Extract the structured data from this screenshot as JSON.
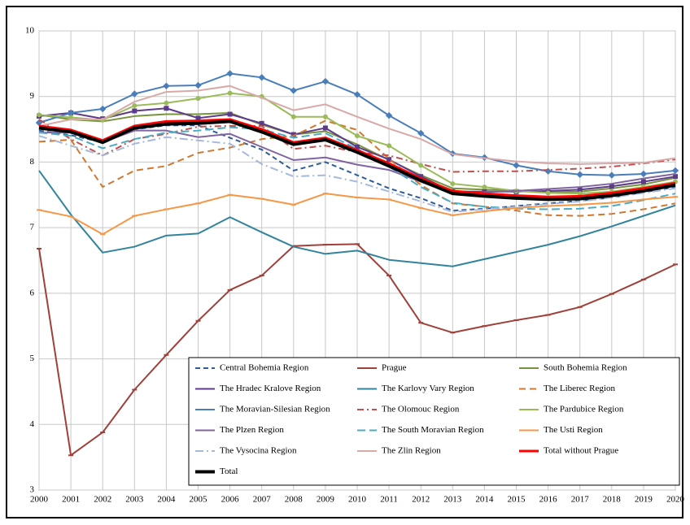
{
  "chart_data": {
    "type": "line",
    "x": [
      2000,
      2001,
      2002,
      2003,
      2004,
      2005,
      2006,
      2007,
      2008,
      2009,
      2010,
      2011,
      2012,
      2013,
      2014,
      2015,
      2016,
      2017,
      2018,
      2019,
      2020
    ],
    "xlim": [
      2000,
      2020
    ],
    "xticks": [
      2000,
      2001,
      2002,
      2003,
      2004,
      2005,
      2006,
      2007,
      2008,
      2009,
      2010,
      2011,
      2012,
      2013,
      2014,
      2015,
      2016,
      2017,
      2018,
      2019,
      2020
    ],
    "ylim": [
      3,
      10
    ],
    "yticks": [
      3,
      4,
      5,
      6,
      7,
      8,
      9,
      10
    ],
    "grid": true,
    "legend": "bottom-right",
    "series": [
      {
        "name": "Central Bohemia Region",
        "color": "#2e5c99",
        "dash": "6 4",
        "width": 2,
        "marker": null,
        "values": [
          8.48,
          8.41,
          8.3,
          8.5,
          8.56,
          8.56,
          8.37,
          8.19,
          7.87,
          8.0,
          7.8,
          7.6,
          7.45,
          7.26,
          7.29,
          7.33,
          7.37,
          7.41,
          7.46,
          7.54,
          7.62
        ]
      },
      {
        "name": "Prague",
        "color": "#a0403a",
        "dash": null,
        "width": 2,
        "marker": "dash",
        "values": [
          6.68,
          3.53,
          3.88,
          4.53,
          5.06,
          5.58,
          6.05,
          6.27,
          6.72,
          6.74,
          6.75,
          6.27,
          5.55,
          5.4,
          5.5,
          5.59,
          5.67,
          5.79,
          5.99,
          6.21,
          6.44
        ]
      },
      {
        "name": "South Bohemia Region",
        "color": "#77933c",
        "dash": null,
        "width": 2,
        "marker": null,
        "values": [
          8.72,
          8.65,
          8.62,
          8.7,
          8.73,
          8.73,
          8.75,
          8.57,
          8.42,
          8.47,
          8.27,
          8.03,
          7.8,
          7.6,
          7.58,
          7.57,
          7.54,
          7.55,
          7.6,
          7.66,
          7.76
        ]
      },
      {
        "name": "The Hradec Kralove Region",
        "color": "#5e3b8a",
        "dash": null,
        "width": 2,
        "marker": "square",
        "values": [
          8.7,
          8.75,
          8.66,
          8.78,
          8.82,
          8.67,
          8.73,
          8.59,
          8.42,
          8.52,
          8.23,
          8.04,
          7.78,
          7.55,
          7.55,
          7.55,
          7.56,
          7.58,
          7.63,
          7.7,
          7.78
        ]
      },
      {
        "name": "The Karlovy Vary Region",
        "color": "#31849b",
        "dash": null,
        "width": 2,
        "marker": null,
        "values": [
          7.87,
          7.2,
          6.62,
          6.71,
          6.88,
          6.91,
          7.16,
          6.93,
          6.71,
          6.6,
          6.65,
          6.51,
          6.46,
          6.41,
          6.52,
          6.63,
          6.74,
          6.87,
          7.02,
          7.18,
          7.34
        ]
      },
      {
        "name": "The Liberec Region",
        "color": "#d07830",
        "dash": "8 5",
        "width": 2,
        "marker": null,
        "values": [
          8.31,
          8.34,
          7.62,
          7.87,
          7.94,
          8.14,
          8.22,
          8.35,
          8.4,
          8.63,
          8.49,
          8.05,
          7.65,
          7.37,
          7.32,
          7.26,
          7.19,
          7.18,
          7.21,
          7.28,
          7.37
        ]
      },
      {
        "name": "The Moravian-Silesian Region",
        "color": "#4a7ebb",
        "dash": null,
        "width": 2,
        "marker": "diamond",
        "values": [
          8.6,
          8.75,
          8.81,
          9.04,
          9.16,
          9.17,
          9.35,
          9.29,
          9.09,
          9.23,
          9.03,
          8.71,
          8.44,
          8.13,
          8.07,
          7.95,
          7.86,
          7.81,
          7.8,
          7.82,
          7.87
        ]
      },
      {
        "name": "The Olomouc Region",
        "color": "#c0504d",
        "dash": "8 4 2 4",
        "width": 2,
        "marker": null,
        "values": [
          8.65,
          8.35,
          8.1,
          8.35,
          8.43,
          8.54,
          8.55,
          8.55,
          8.2,
          8.25,
          8.15,
          8.1,
          7.97,
          7.85,
          7.86,
          7.86,
          7.88,
          7.9,
          7.93,
          7.98,
          8.04
        ]
      },
      {
        "name": "The Pardubice Region",
        "color": "#9bbb59",
        "dash": null,
        "width": 2,
        "marker": "circle",
        "values": [
          8.72,
          8.68,
          8.64,
          8.86,
          8.9,
          8.97,
          9.05,
          9.0,
          8.69,
          8.69,
          8.4,
          8.25,
          7.95,
          7.67,
          7.62,
          7.56,
          7.53,
          7.52,
          7.55,
          7.62,
          7.7
        ]
      },
      {
        "name": "The Plzen Region",
        "color": "#8064a2",
        "dash": null,
        "width": 2,
        "marker": null,
        "values": [
          8.45,
          8.45,
          8.3,
          8.48,
          8.48,
          8.38,
          8.43,
          8.23,
          8.03,
          8.07,
          7.96,
          7.88,
          7.7,
          7.52,
          7.54,
          7.56,
          7.59,
          7.62,
          7.67,
          7.75,
          7.82
        ]
      },
      {
        "name": "The South Moravian Region",
        "color": "#4bacc6",
        "dash": "10 5",
        "width": 2,
        "marker": null,
        "values": [
          8.45,
          8.4,
          8.21,
          8.35,
          8.45,
          8.48,
          8.53,
          8.5,
          8.37,
          8.44,
          8.2,
          7.93,
          7.62,
          7.38,
          7.32,
          7.29,
          7.28,
          7.29,
          7.33,
          7.42,
          7.52
        ]
      },
      {
        "name": "The Usti Region",
        "color": "#f79646",
        "dash": null,
        "width": 2,
        "marker": "dash",
        "values": [
          7.27,
          7.17,
          6.9,
          7.18,
          7.28,
          7.37,
          7.5,
          7.44,
          7.35,
          7.52,
          7.46,
          7.43,
          7.3,
          7.19,
          7.25,
          7.3,
          7.33,
          7.35,
          7.38,
          7.43,
          7.47
        ]
      },
      {
        "name": "The Vysocina Region",
        "color": "#a6b9db",
        "dash": "10 4 2 4",
        "width": 2,
        "marker": null,
        "values": [
          8.4,
          8.25,
          8.1,
          8.28,
          8.38,
          8.33,
          8.28,
          7.97,
          7.78,
          7.8,
          7.7,
          7.55,
          7.4,
          7.24,
          7.28,
          7.32,
          7.36,
          7.4,
          7.46,
          7.53,
          7.6
        ]
      },
      {
        "name": "The Zlin Region",
        "color": "#d9a8a8",
        "dash": null,
        "width": 2,
        "marker": null,
        "values": [
          8.55,
          8.65,
          8.65,
          8.92,
          9.07,
          9.09,
          9.16,
          8.98,
          8.79,
          8.88,
          8.69,
          8.51,
          8.35,
          8.12,
          8.06,
          8.01,
          7.98,
          7.97,
          7.98,
          7.99,
          8.06
        ]
      },
      {
        "name": "Total without Prague",
        "color": "#ff0000",
        "dash": null,
        "width": 3,
        "marker": null,
        "values": [
          8.55,
          8.49,
          8.33,
          8.55,
          8.62,
          8.63,
          8.65,
          8.5,
          8.3,
          8.37,
          8.18,
          7.98,
          7.75,
          7.56,
          7.52,
          7.49,
          7.47,
          7.48,
          7.53,
          7.6,
          7.68
        ]
      },
      {
        "name": "Total",
        "color": "#000000",
        "dash": null,
        "width": 4,
        "marker": null,
        "values": [
          8.52,
          8.46,
          8.3,
          8.52,
          8.58,
          8.59,
          8.62,
          8.46,
          8.27,
          8.34,
          8.15,
          7.94,
          7.72,
          7.52,
          7.48,
          7.45,
          7.43,
          7.44,
          7.49,
          7.56,
          7.65
        ]
      }
    ]
  }
}
